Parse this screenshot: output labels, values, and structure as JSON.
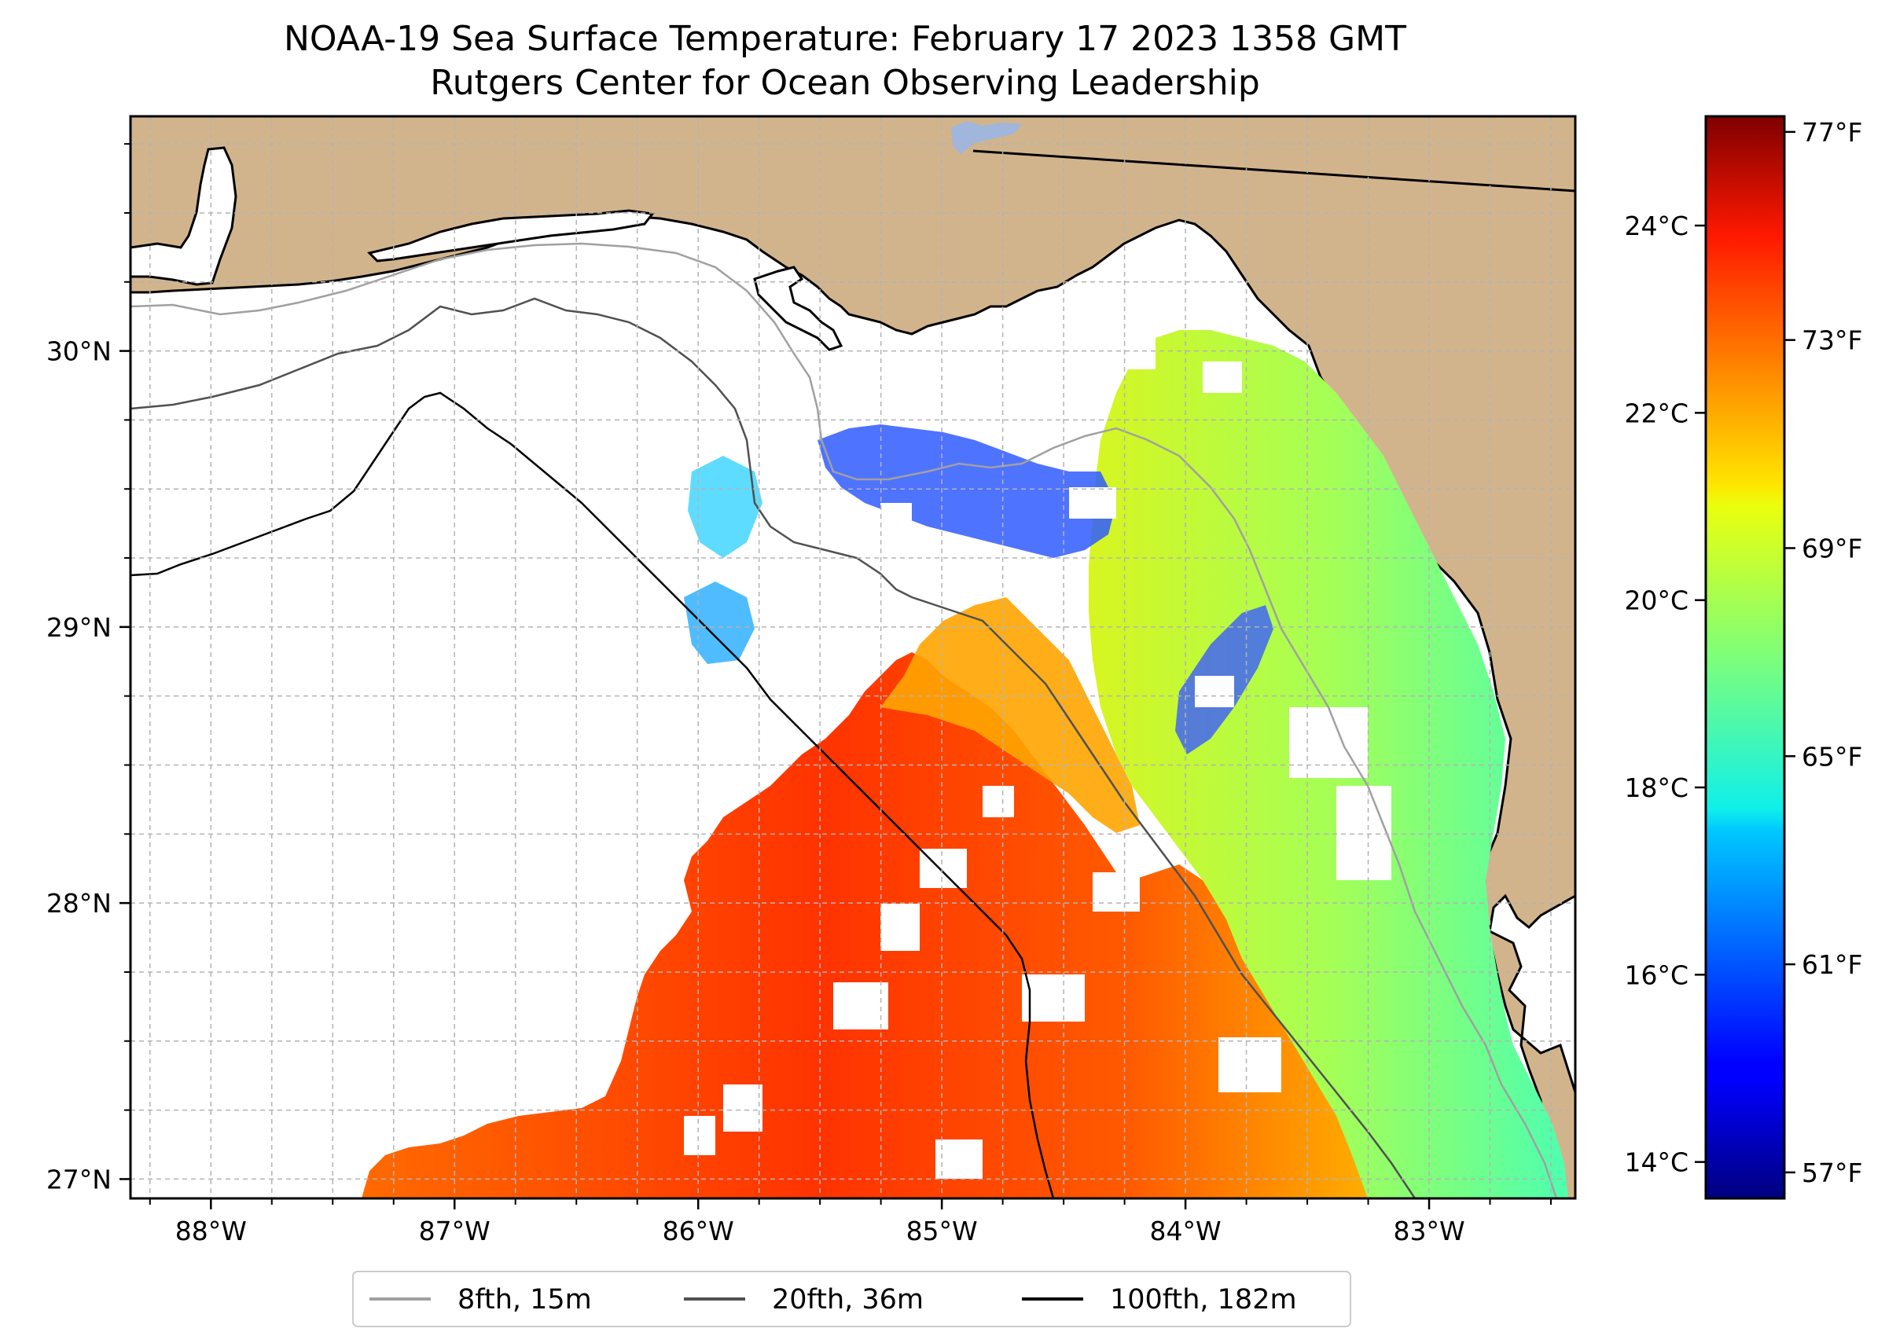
{
  "title": {
    "line1": "NOAA-19 Sea Surface Temperature: February 17 2023 1358 GMT",
    "line2": "Rutgers Center for Ocean Observing Leadership"
  },
  "map": {
    "lon_range": [
      -88.33,
      -82.4
    ],
    "lat_range": [
      26.93,
      30.85
    ],
    "lon_ticks": [
      {
        "value": -88,
        "label": "88°W"
      },
      {
        "value": -87,
        "label": "87°W"
      },
      {
        "value": -86,
        "label": "86°W"
      },
      {
        "value": -85,
        "label": "85°W"
      },
      {
        "value": -84,
        "label": "84°W"
      },
      {
        "value": -83,
        "label": "83°W"
      }
    ],
    "lat_ticks": [
      {
        "value": 27,
        "label": "27°N"
      },
      {
        "value": 28,
        "label": "28°N"
      },
      {
        "value": 29,
        "label": "29°N"
      },
      {
        "value": 30,
        "label": "30°N"
      }
    ],
    "grid_step_degrees": 0.25
  },
  "colorbar": {
    "colormap": "jet",
    "celsius_ticks": [
      {
        "value": 14,
        "label": "14°C"
      },
      {
        "value": 16,
        "label": "16°C"
      },
      {
        "value": 18,
        "label": "18°C"
      },
      {
        "value": 20,
        "label": "20°C"
      },
      {
        "value": 22,
        "label": "22°C"
      },
      {
        "value": 24,
        "label": "24°C"
      }
    ],
    "fahrenheit_ticks": [
      {
        "value": 57,
        "label": "57°F"
      },
      {
        "value": 61,
        "label": "61°F"
      },
      {
        "value": 65,
        "label": "65°F"
      },
      {
        "value": 69,
        "label": "69°F"
      },
      {
        "value": 73,
        "label": "73°F"
      },
      {
        "value": 77,
        "label": "77°F"
      }
    ],
    "range_f": [
      56.5,
      77.3
    ]
  },
  "legend": {
    "entries": [
      {
        "label": "8fth, 15m",
        "color": "#a0a0a0"
      },
      {
        "label": "20fth, 36m",
        "color": "#505050"
      },
      {
        "label": "100fth, 182m",
        "color": "#000000"
      }
    ]
  },
  "colors": {
    "land": "#d2b48c",
    "water_body": "#a0b6dc",
    "grid": "#b3b3b3"
  }
}
